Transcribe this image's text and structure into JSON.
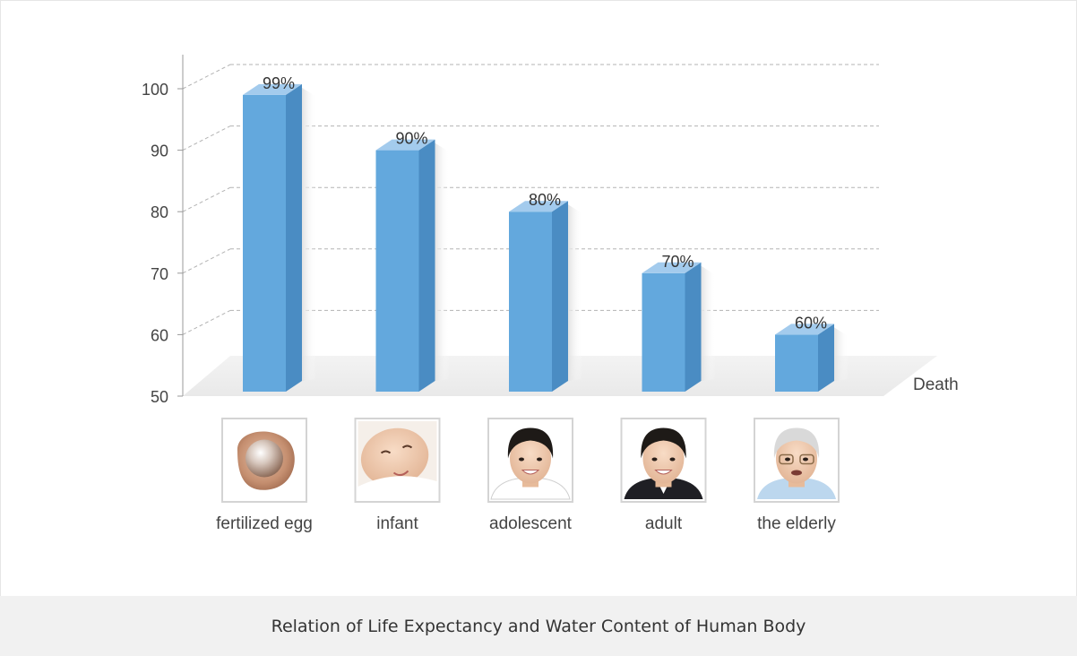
{
  "chart_data": {
    "type": "bar",
    "categories": [
      "fertilized egg",
      "infant",
      "adolescent",
      "adult",
      "the elderly"
    ],
    "values": [
      99,
      90,
      80,
      70,
      60
    ],
    "data_labels": [
      "99%",
      "90%",
      "80%",
      "70%",
      "60%"
    ],
    "yticks": [
      "50",
      "60",
      "70",
      "80",
      "90",
      "100"
    ],
    "ylim": [
      50,
      100
    ],
    "axis_end_label": "Death",
    "grid": true,
    "style": "3d",
    "bar_color": "#63a8dd"
  },
  "caption": "Relation of Life Expectancy and Water Content of Human Body",
  "icons": [
    "fertilized-egg-image",
    "infant-face-image",
    "adolescent-face-image",
    "adult-face-image",
    "elderly-face-image"
  ]
}
